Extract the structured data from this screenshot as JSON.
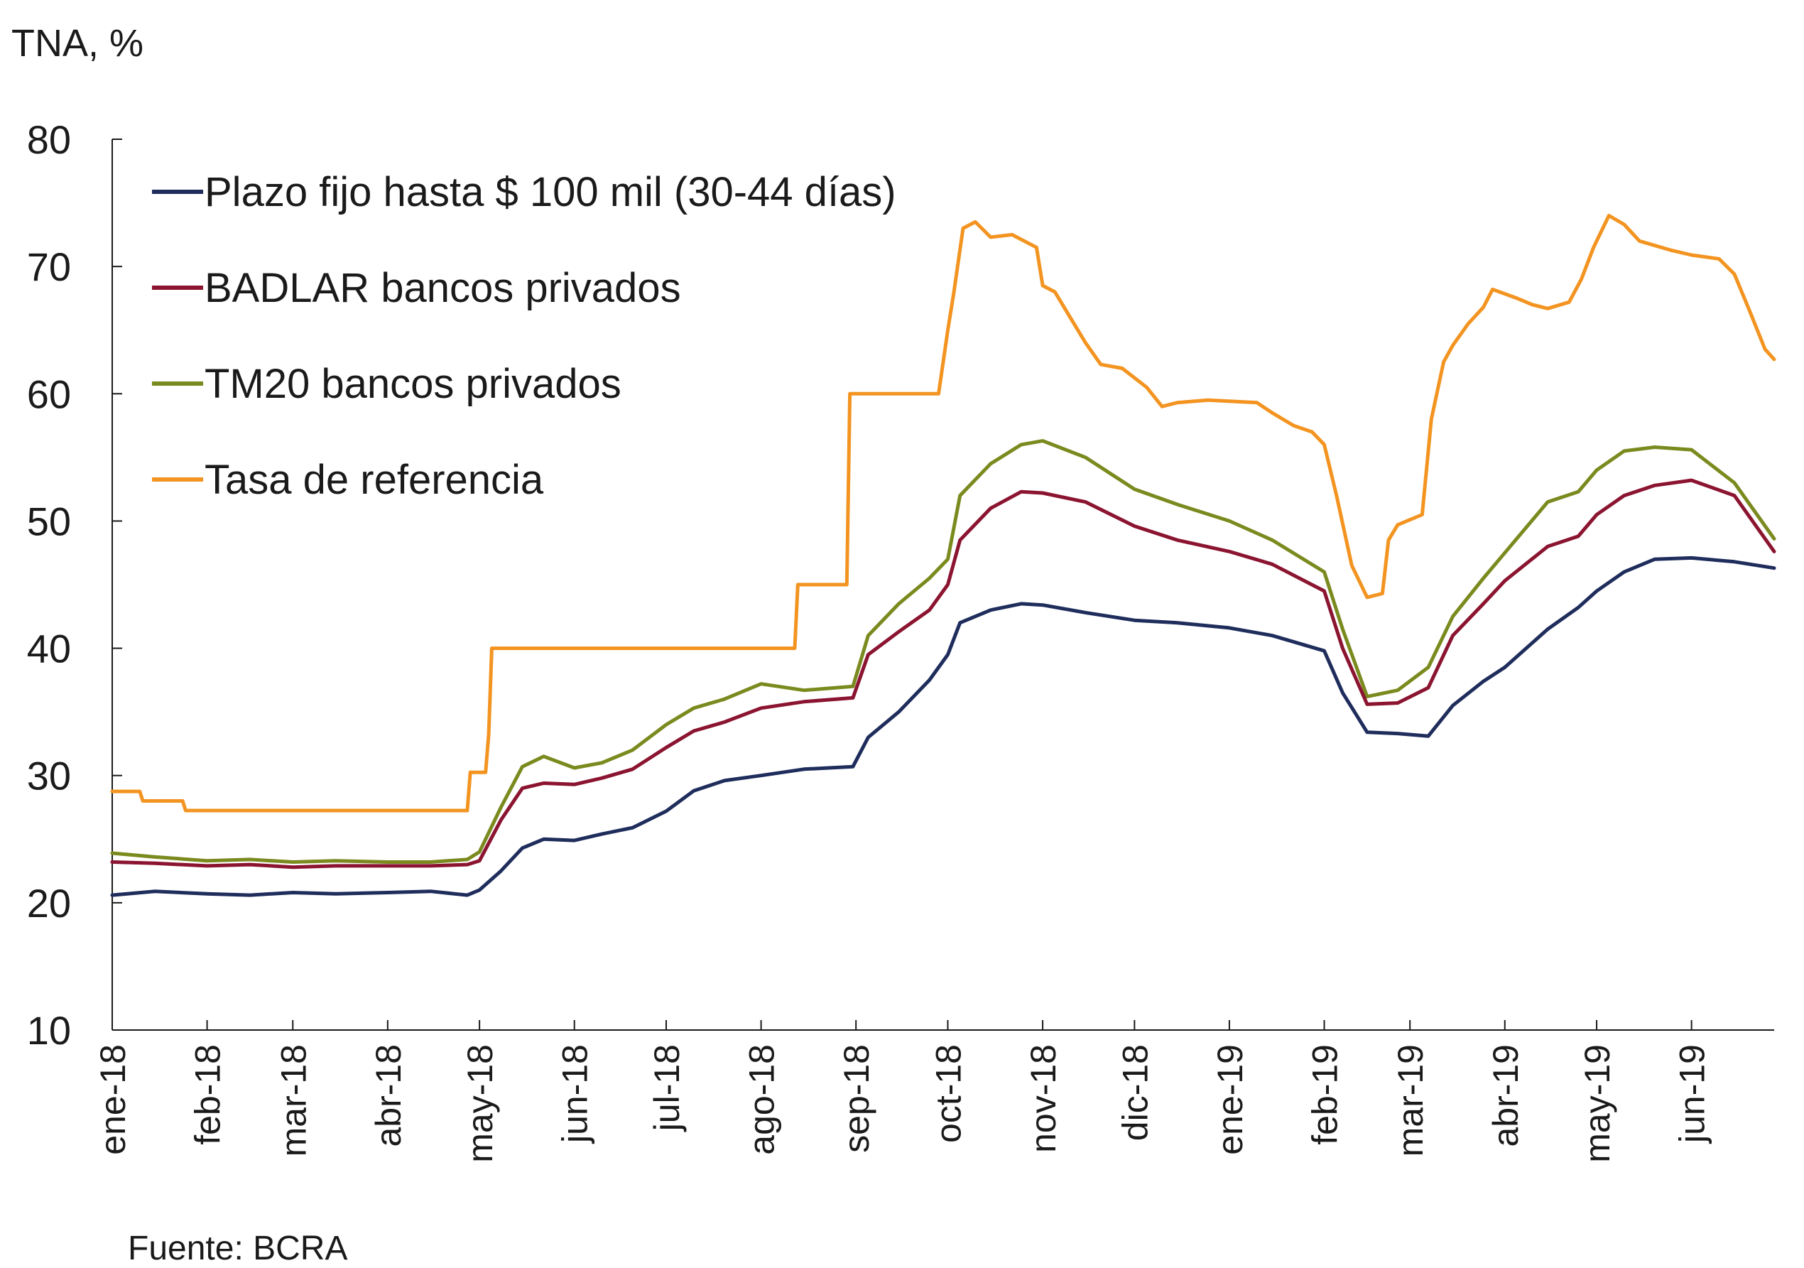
{
  "chart_data": {
    "type": "line",
    "ylabel": "TNA, %",
    "ylim": [
      10,
      80
    ],
    "y_ticks": [
      10,
      20,
      30,
      40,
      50,
      60,
      70,
      80
    ],
    "x_tick_labels": [
      "ene-18",
      "feb-18",
      "mar-18",
      "abr-18",
      "may-18",
      "jun-18",
      "jul-18",
      "ago-18",
      "sep-18",
      "oct-18",
      "nov-18",
      "dic-18",
      "ene-19",
      "feb-19",
      "mar-19",
      "abr-19",
      "may-19",
      "jun-19"
    ],
    "x_tick_dates": [
      "2018-01-01",
      "2018-02-01",
      "2018-03-01",
      "2018-04-01",
      "2018-05-01",
      "2018-06-01",
      "2018-07-01",
      "2018-08-01",
      "2018-09-01",
      "2018-10-01",
      "2018-11-01",
      "2018-12-01",
      "2019-01-01",
      "2019-02-01",
      "2019-03-01",
      "2019-04-01",
      "2019-05-01",
      "2019-06-01"
    ],
    "x_range": [
      "2018-01-01",
      "2019-06-28"
    ],
    "legend_position": "top-left",
    "grid": false,
    "series": [
      {
        "name": "Plazo fijo hasta $ 100 mil (30-44 días)",
        "color": "#1f2d5c",
        "points": [
          [
            "2018-01-01",
            20.6
          ],
          [
            "2018-01-15",
            20.9
          ],
          [
            "2018-02-01",
            20.7
          ],
          [
            "2018-02-15",
            20.6
          ],
          [
            "2018-03-01",
            20.8
          ],
          [
            "2018-03-15",
            20.7
          ],
          [
            "2018-04-01",
            20.8
          ],
          [
            "2018-04-15",
            20.9
          ],
          [
            "2018-04-27",
            20.6
          ],
          [
            "2018-05-01",
            21.0
          ],
          [
            "2018-05-08",
            22.5
          ],
          [
            "2018-05-15",
            24.3
          ],
          [
            "2018-05-22",
            25.0
          ],
          [
            "2018-06-01",
            24.9
          ],
          [
            "2018-06-10",
            25.4
          ],
          [
            "2018-06-20",
            25.9
          ],
          [
            "2018-07-01",
            27.2
          ],
          [
            "2018-07-10",
            28.8
          ],
          [
            "2018-07-20",
            29.6
          ],
          [
            "2018-08-01",
            30.0
          ],
          [
            "2018-08-15",
            30.5
          ],
          [
            "2018-08-31",
            30.7
          ],
          [
            "2018-09-05",
            33.0
          ],
          [
            "2018-09-15",
            35.0
          ],
          [
            "2018-09-25",
            37.5
          ],
          [
            "2018-10-01",
            39.5
          ],
          [
            "2018-10-05",
            42.0
          ],
          [
            "2018-10-15",
            43.0
          ],
          [
            "2018-10-25",
            43.5
          ],
          [
            "2018-11-01",
            43.4
          ],
          [
            "2018-11-15",
            42.8
          ],
          [
            "2018-12-01",
            42.2
          ],
          [
            "2018-12-15",
            42.0
          ],
          [
            "2019-01-01",
            41.6
          ],
          [
            "2019-01-15",
            41.0
          ],
          [
            "2019-02-01",
            39.8
          ],
          [
            "2019-02-07",
            36.5
          ],
          [
            "2019-02-15",
            33.4
          ],
          [
            "2019-02-25",
            33.3
          ],
          [
            "2019-03-07",
            33.1
          ],
          [
            "2019-03-15",
            35.5
          ],
          [
            "2019-03-25",
            37.4
          ],
          [
            "2019-04-01",
            38.5
          ],
          [
            "2019-04-15",
            41.5
          ],
          [
            "2019-04-25",
            43.2
          ],
          [
            "2019-05-01",
            44.5
          ],
          [
            "2019-05-10",
            46.0
          ],
          [
            "2019-05-20",
            47.0
          ],
          [
            "2019-06-01",
            47.1
          ],
          [
            "2019-06-15",
            46.8
          ],
          [
            "2019-06-28",
            46.3
          ]
        ]
      },
      {
        "name": "BADLAR bancos privados",
        "color": "#8b1430",
        "points": [
          [
            "2018-01-01",
            23.2
          ],
          [
            "2018-01-15",
            23.1
          ],
          [
            "2018-02-01",
            22.9
          ],
          [
            "2018-02-15",
            23.0
          ],
          [
            "2018-03-01",
            22.8
          ],
          [
            "2018-03-15",
            22.9
          ],
          [
            "2018-04-01",
            22.9
          ],
          [
            "2018-04-15",
            22.9
          ],
          [
            "2018-04-27",
            23.0
          ],
          [
            "2018-05-01",
            23.3
          ],
          [
            "2018-05-08",
            26.5
          ],
          [
            "2018-05-15",
            29.0
          ],
          [
            "2018-05-22",
            29.4
          ],
          [
            "2018-06-01",
            29.3
          ],
          [
            "2018-06-10",
            29.8
          ],
          [
            "2018-06-20",
            30.5
          ],
          [
            "2018-07-01",
            32.2
          ],
          [
            "2018-07-10",
            33.5
          ],
          [
            "2018-07-20",
            34.2
          ],
          [
            "2018-08-01",
            35.3
          ],
          [
            "2018-08-15",
            35.8
          ],
          [
            "2018-08-31",
            36.1
          ],
          [
            "2018-09-05",
            39.5
          ],
          [
            "2018-09-15",
            41.3
          ],
          [
            "2018-09-25",
            43.0
          ],
          [
            "2018-10-01",
            45.0
          ],
          [
            "2018-10-05",
            48.5
          ],
          [
            "2018-10-15",
            51.0
          ],
          [
            "2018-10-25",
            52.3
          ],
          [
            "2018-11-01",
            52.2
          ],
          [
            "2018-11-15",
            51.5
          ],
          [
            "2018-12-01",
            49.6
          ],
          [
            "2018-12-15",
            48.5
          ],
          [
            "2019-01-01",
            47.6
          ],
          [
            "2019-01-15",
            46.6
          ],
          [
            "2019-02-01",
            44.5
          ],
          [
            "2019-02-07",
            40.0
          ],
          [
            "2019-02-15",
            35.6
          ],
          [
            "2019-02-25",
            35.7
          ],
          [
            "2019-03-07",
            36.9
          ],
          [
            "2019-03-15",
            41.0
          ],
          [
            "2019-03-25",
            43.5
          ],
          [
            "2019-04-01",
            45.3
          ],
          [
            "2019-04-15",
            48.0
          ],
          [
            "2019-04-25",
            48.8
          ],
          [
            "2019-05-01",
            50.5
          ],
          [
            "2019-05-10",
            52.0
          ],
          [
            "2019-05-20",
            52.8
          ],
          [
            "2019-06-01",
            53.2
          ],
          [
            "2019-06-15",
            52.0
          ],
          [
            "2019-06-28",
            47.6
          ]
        ]
      },
      {
        "name": "TM20 bancos privados",
        "color": "#7b8a1e",
        "points": [
          [
            "2018-01-01",
            23.9
          ],
          [
            "2018-01-15",
            23.6
          ],
          [
            "2018-02-01",
            23.3
          ],
          [
            "2018-02-15",
            23.4
          ],
          [
            "2018-03-01",
            23.2
          ],
          [
            "2018-03-15",
            23.3
          ],
          [
            "2018-04-01",
            23.2
          ],
          [
            "2018-04-15",
            23.2
          ],
          [
            "2018-04-27",
            23.4
          ],
          [
            "2018-05-01",
            24.0
          ],
          [
            "2018-05-08",
            27.5
          ],
          [
            "2018-05-15",
            30.7
          ],
          [
            "2018-05-22",
            31.5
          ],
          [
            "2018-06-01",
            30.6
          ],
          [
            "2018-06-10",
            31.0
          ],
          [
            "2018-06-20",
            32.0
          ],
          [
            "2018-07-01",
            34.0
          ],
          [
            "2018-07-10",
            35.3
          ],
          [
            "2018-07-20",
            36.0
          ],
          [
            "2018-08-01",
            37.2
          ],
          [
            "2018-08-15",
            36.7
          ],
          [
            "2018-08-31",
            37.0
          ],
          [
            "2018-09-05",
            41.0
          ],
          [
            "2018-09-15",
            43.5
          ],
          [
            "2018-09-25",
            45.5
          ],
          [
            "2018-10-01",
            47.0
          ],
          [
            "2018-10-05",
            52.0
          ],
          [
            "2018-10-15",
            54.5
          ],
          [
            "2018-10-25",
            56.0
          ],
          [
            "2018-11-01",
            56.3
          ],
          [
            "2018-11-15",
            55.0
          ],
          [
            "2018-12-01",
            52.5
          ],
          [
            "2018-12-15",
            51.3
          ],
          [
            "2019-01-01",
            50.0
          ],
          [
            "2019-01-15",
            48.5
          ],
          [
            "2019-02-01",
            46.0
          ],
          [
            "2019-02-07",
            41.5
          ],
          [
            "2019-02-15",
            36.2
          ],
          [
            "2019-02-25",
            36.7
          ],
          [
            "2019-03-07",
            38.5
          ],
          [
            "2019-03-15",
            42.5
          ],
          [
            "2019-03-25",
            45.5
          ],
          [
            "2019-04-01",
            47.5
          ],
          [
            "2019-04-15",
            51.5
          ],
          [
            "2019-04-25",
            52.3
          ],
          [
            "2019-05-01",
            54.0
          ],
          [
            "2019-05-10",
            55.5
          ],
          [
            "2019-05-20",
            55.8
          ],
          [
            "2019-06-01",
            55.6
          ],
          [
            "2019-06-15",
            53.0
          ],
          [
            "2019-06-28",
            48.6
          ]
        ]
      },
      {
        "name": "Tasa de referencia",
        "color": "#f39421",
        "points": [
          [
            "2018-01-01",
            28.75
          ],
          [
            "2018-01-10",
            28.75
          ],
          [
            "2018-01-11",
            28.0
          ],
          [
            "2018-01-24",
            28.0
          ],
          [
            "2018-01-25",
            27.25
          ],
          [
            "2018-04-27",
            27.25
          ],
          [
            "2018-04-28",
            30.25
          ],
          [
            "2018-05-03",
            30.25
          ],
          [
            "2018-05-04",
            33.25
          ],
          [
            "2018-05-05",
            40.0
          ],
          [
            "2018-08-12",
            40.0
          ],
          [
            "2018-08-13",
            45.0
          ],
          [
            "2018-08-29",
            45.0
          ],
          [
            "2018-08-30",
            60.0
          ],
          [
            "2018-09-28",
            60.0
          ],
          [
            "2018-10-01",
            65.0
          ],
          [
            "2018-10-03",
            68.0
          ],
          [
            "2018-10-06",
            73.0
          ],
          [
            "2018-10-10",
            73.5
          ],
          [
            "2018-10-15",
            72.3
          ],
          [
            "2018-10-22",
            72.5
          ],
          [
            "2018-10-30",
            71.5
          ],
          [
            "2018-11-01",
            68.5
          ],
          [
            "2018-11-05",
            68.0
          ],
          [
            "2018-11-10",
            66.0
          ],
          [
            "2018-11-15",
            64.0
          ],
          [
            "2018-11-20",
            62.3
          ],
          [
            "2018-11-27",
            62.0
          ],
          [
            "2018-12-05",
            60.5
          ],
          [
            "2018-12-10",
            59.0
          ],
          [
            "2018-12-15",
            59.3
          ],
          [
            "2018-12-25",
            59.5
          ],
          [
            "2019-01-10",
            59.3
          ],
          [
            "2019-01-15",
            58.5
          ],
          [
            "2019-01-22",
            57.5
          ],
          [
            "2019-01-28",
            57.0
          ],
          [
            "2019-02-01",
            56.0
          ],
          [
            "2019-02-05",
            52.0
          ],
          [
            "2019-02-10",
            46.5
          ],
          [
            "2019-02-15",
            44.0
          ],
          [
            "2019-02-20",
            44.3
          ],
          [
            "2019-02-22",
            48.5
          ],
          [
            "2019-02-25",
            49.7
          ],
          [
            "2019-03-05",
            50.5
          ],
          [
            "2019-03-08",
            58.0
          ],
          [
            "2019-03-12",
            62.5
          ],
          [
            "2019-03-15",
            63.8
          ],
          [
            "2019-03-20",
            65.5
          ],
          [
            "2019-03-25",
            66.8
          ],
          [
            "2019-03-28",
            68.2
          ],
          [
            "2019-04-05",
            67.5
          ],
          [
            "2019-04-10",
            67.0
          ],
          [
            "2019-04-15",
            66.7
          ],
          [
            "2019-04-22",
            67.2
          ],
          [
            "2019-04-26",
            69.0
          ],
          [
            "2019-04-30",
            71.5
          ],
          [
            "2019-05-05",
            74.0
          ],
          [
            "2019-05-10",
            73.3
          ],
          [
            "2019-05-15",
            72.0
          ],
          [
            "2019-05-25",
            71.3
          ],
          [
            "2019-06-01",
            70.9
          ],
          [
            "2019-06-10",
            70.6
          ],
          [
            "2019-06-15",
            69.4
          ],
          [
            "2019-06-20",
            66.5
          ],
          [
            "2019-06-25",
            63.5
          ],
          [
            "2019-06-28",
            62.7
          ]
        ]
      }
    ]
  },
  "source": "Fuente: BCRA"
}
